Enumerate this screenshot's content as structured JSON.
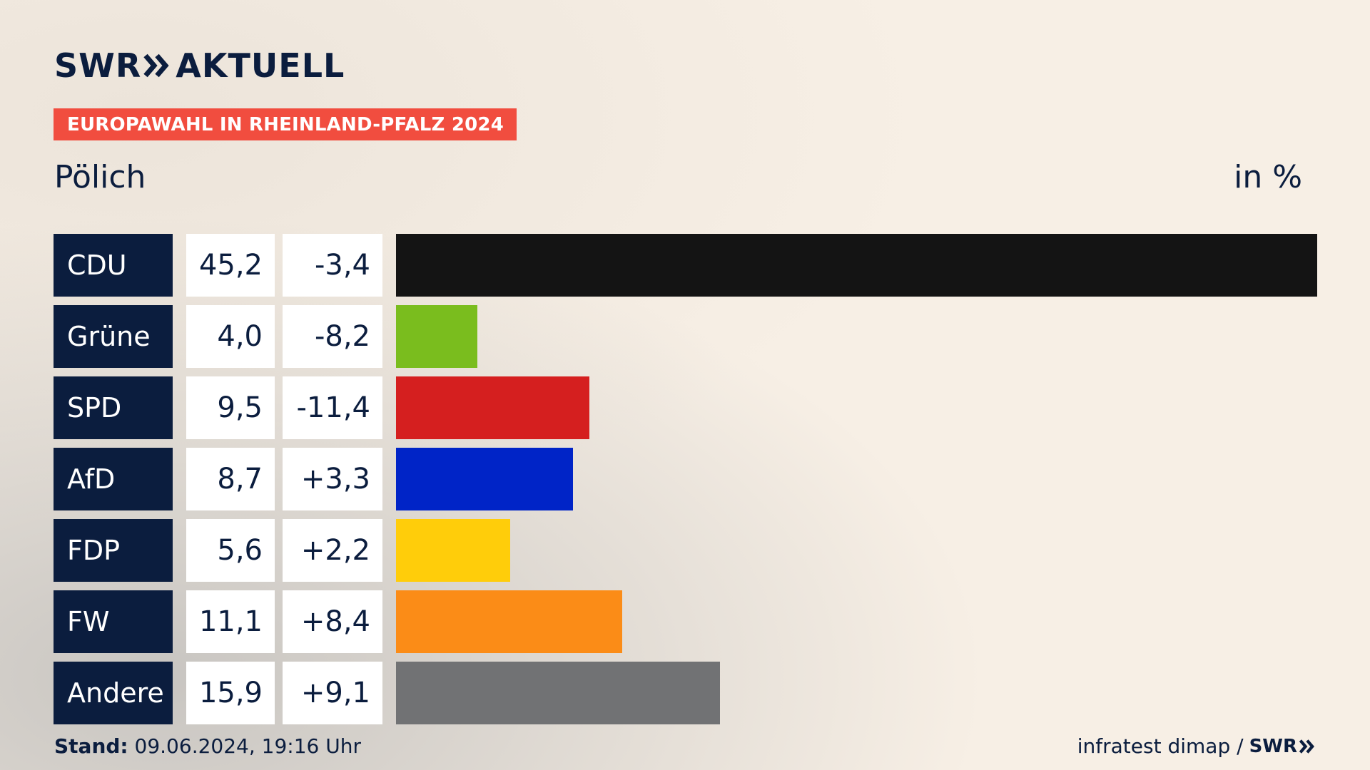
{
  "brand": {
    "logo_left": "SWR",
    "logo_right": "AKTUELL",
    "color_navy": "#0b1d3e",
    "color_banner": "#f14d3f"
  },
  "banner": {
    "label": "EUROPAWAHL IN RHEINLAND-PFALZ 2024"
  },
  "header": {
    "location": "Pölich",
    "unit": "in %"
  },
  "footer": {
    "stand_label": "Stand:",
    "stand_value": "09.06.2024, 19:16 Uhr",
    "source": "infratest dimap /",
    "source_brand": "SWR"
  },
  "chart_data": {
    "type": "bar",
    "orientation": "horizontal",
    "categories": [
      "CDU",
      "Grüne",
      "SPD",
      "AfD",
      "FDP",
      "FW",
      "Andere"
    ],
    "values": [
      45.2,
      4.0,
      9.5,
      8.7,
      5.6,
      11.1,
      15.9
    ],
    "value_labels": [
      "45,2",
      "4,0",
      "9,5",
      "8,7",
      "5,6",
      "11,1",
      "15,9"
    ],
    "diffs": [
      -3.4,
      -8.2,
      -11.4,
      3.3,
      2.2,
      8.4,
      9.1
    ],
    "diff_labels": [
      "-3,4",
      "-8,2",
      "-11,4",
      "+3,3",
      "+2,2",
      "+8,4",
      "+9,1"
    ],
    "colors": [
      "#141414",
      "#7abd1e",
      "#d51f1f",
      "#0024c7",
      "#ffcd0a",
      "#fb8c17",
      "#717274"
    ],
    "xlim": [
      0,
      45.2
    ],
    "grid": false,
    "legend": "none"
  }
}
